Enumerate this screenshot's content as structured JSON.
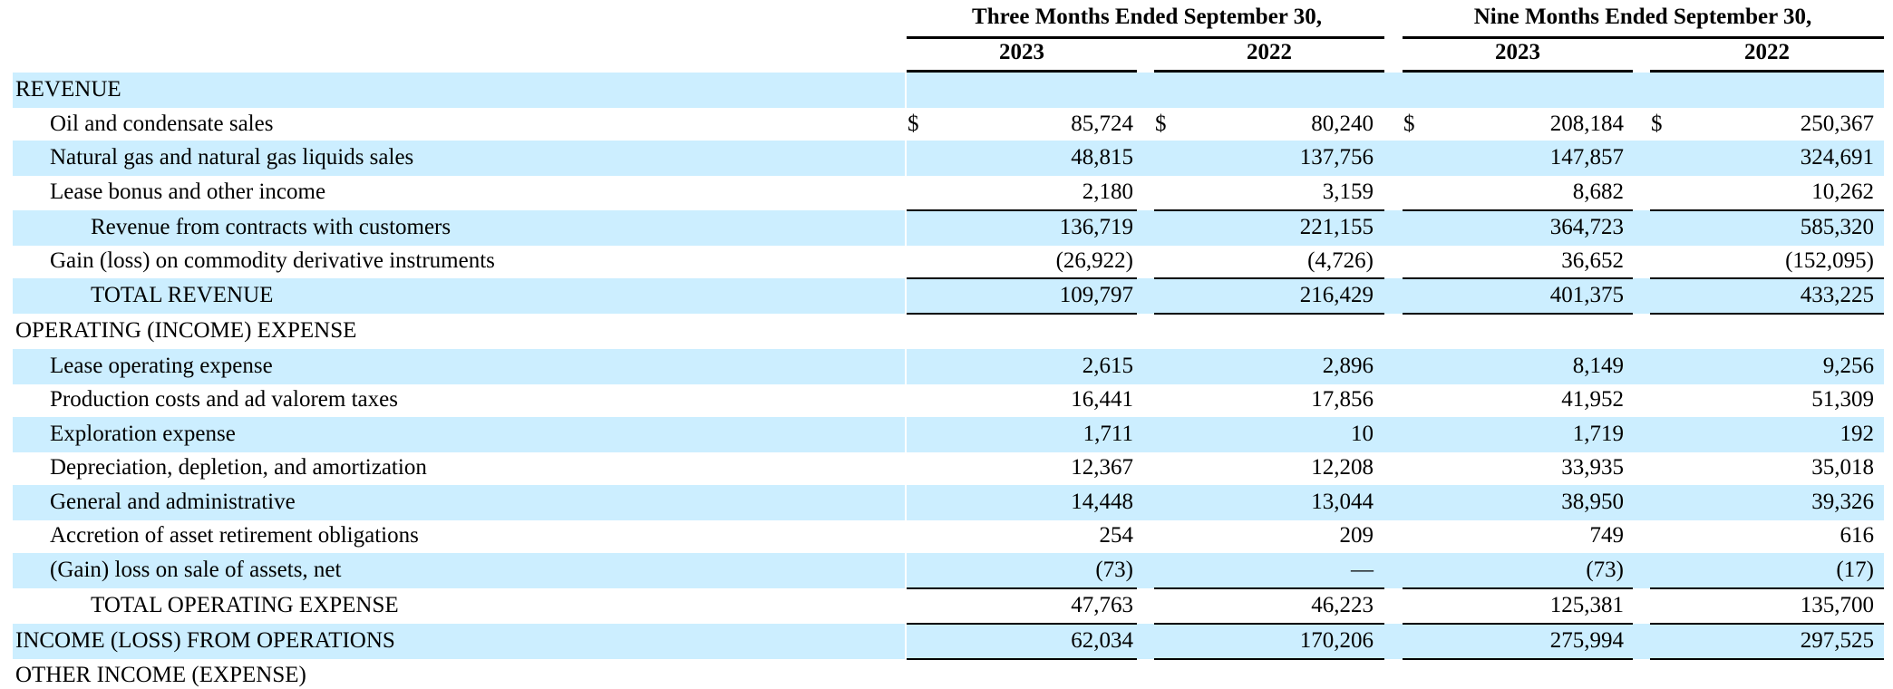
{
  "header": {
    "group1": "Three Months Ended September 30,",
    "group2": "Nine Months Ended September 30,",
    "years": [
      "2023",
      "2022",
      "2023",
      "2022"
    ]
  },
  "currency_symbol": "$",
  "rows": [
    {
      "label": "REVENUE",
      "indent": 0,
      "values": []
    },
    {
      "label": "Oil and condensate sales",
      "indent": 1,
      "currency": true,
      "values": [
        "85,724",
        "80,240",
        "208,184",
        "250,367"
      ]
    },
    {
      "label": "Natural gas and natural gas liquids sales",
      "indent": 1,
      "values": [
        "48,815",
        "137,756",
        "147,857",
        "324,691"
      ]
    },
    {
      "label": "Lease bonus and other income",
      "indent": 1,
      "values": [
        "2,180",
        "3,159",
        "8,682",
        "10,262"
      ]
    },
    {
      "label": "Revenue from contracts with customers",
      "indent": 2,
      "values": [
        "136,719",
        "221,155",
        "364,723",
        "585,320"
      ]
    },
    {
      "label": "Gain (loss) on commodity derivative instruments",
      "indent": 1,
      "values": [
        "(26,922)",
        "(4,726)",
        "36,652",
        "(152,095)"
      ]
    },
    {
      "label": "TOTAL REVENUE",
      "indent": 2,
      "values": [
        "109,797",
        "216,429",
        "401,375",
        "433,225"
      ]
    },
    {
      "label": "OPERATING (INCOME) EXPENSE",
      "indent": 0,
      "values": []
    },
    {
      "label": "Lease operating expense",
      "indent": 1,
      "values": [
        "2,615",
        "2,896",
        "8,149",
        "9,256"
      ]
    },
    {
      "label": "Production costs and ad valorem taxes",
      "indent": 1,
      "values": [
        "16,441",
        "17,856",
        "41,952",
        "51,309"
      ]
    },
    {
      "label": "Exploration expense",
      "indent": 1,
      "values": [
        "1,711",
        "10",
        "1,719",
        "192"
      ]
    },
    {
      "label": "Depreciation, depletion, and amortization",
      "indent": 1,
      "values": [
        "12,367",
        "12,208",
        "33,935",
        "35,018"
      ]
    },
    {
      "label": "General and administrative",
      "indent": 1,
      "values": [
        "14,448",
        "13,044",
        "38,950",
        "39,326"
      ]
    },
    {
      "label": "Accretion of asset retirement obligations",
      "indent": 1,
      "values": [
        "254",
        "209",
        "749",
        "616"
      ]
    },
    {
      "label": "(Gain) loss on sale of assets, net",
      "indent": 1,
      "values": [
        "(73)",
        "—",
        "(73)",
        "(17)"
      ]
    },
    {
      "label": "TOTAL OPERATING EXPENSE",
      "indent": 2,
      "values": [
        "47,763",
        "46,223",
        "125,381",
        "135,700"
      ]
    },
    {
      "label": "INCOME (LOSS) FROM OPERATIONS",
      "indent": 0,
      "values": [
        "62,034",
        "170,206",
        "275,994",
        "297,525"
      ]
    },
    {
      "label": "OTHER INCOME (EXPENSE)",
      "indent": 0,
      "values": []
    }
  ]
}
